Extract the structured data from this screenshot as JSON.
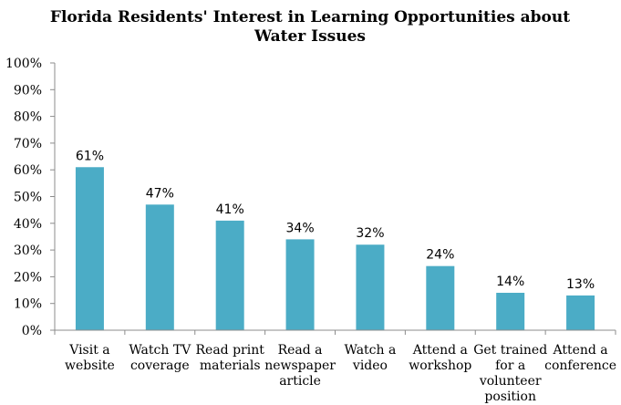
{
  "chart_data": {
    "type": "bar",
    "title": "Florida Residents' Interest in Learning Opportunities about Water Issues",
    "title_lines": [
      "Florida Residents' Interest in Learning Opportunities about",
      "Water Issues"
    ],
    "categories": [
      "Visit a website",
      "Watch TV coverage",
      "Read print materials",
      "Read a newspaper article",
      "Watch a video",
      "Attend a workshop",
      "Get trained for a volunteer position",
      "Attend a conference"
    ],
    "category_lines": [
      [
        "Visit a",
        "website"
      ],
      [
        "Watch TV",
        "coverage"
      ],
      [
        "Read print",
        "materials"
      ],
      [
        "Read a",
        "newspaper",
        "article"
      ],
      [
        "Watch a",
        "video"
      ],
      [
        "Attend a",
        "workshop"
      ],
      [
        "Get trained",
        "for a",
        "volunteer",
        "position"
      ],
      [
        "Attend a",
        "conference"
      ]
    ],
    "values": [
      61,
      47,
      41,
      34,
      32,
      24,
      14,
      13
    ],
    "data_labels": [
      "61%",
      "47%",
      "41%",
      "34%",
      "32%",
      "24%",
      "14%",
      "13%"
    ],
    "ylim": [
      0,
      100
    ],
    "yticks": [
      0,
      10,
      20,
      30,
      40,
      50,
      60,
      70,
      80,
      90,
      100
    ],
    "ytick_labels": [
      "0%",
      "10%",
      "20%",
      "30%",
      "40%",
      "50%",
      "60%",
      "70%",
      "80%",
      "90%",
      "100%"
    ],
    "xlabel": "",
    "ylabel": "",
    "grid": false,
    "legend": "none",
    "bar_color": "#4BACC6"
  }
}
